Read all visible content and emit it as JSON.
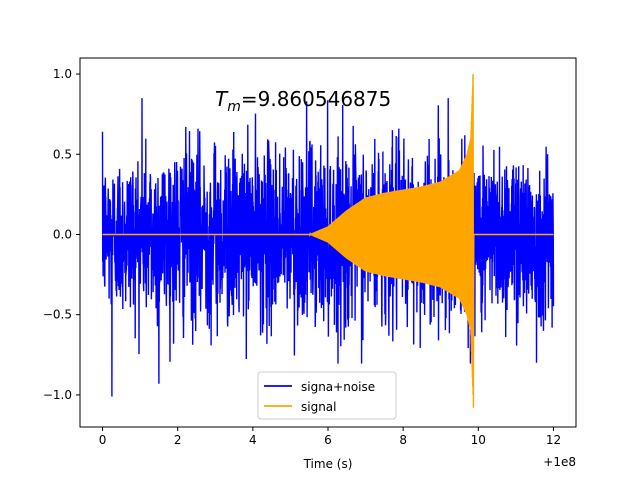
{
  "chart_data": {
    "type": "line",
    "title": "",
    "annotation_prefix": "T",
    "annotation_subscript": "m",
    "annotation_value": "=9.860546875",
    "xlabel": "Time (s)",
    "ylabel": "",
    "x_offset_label": "+1e8",
    "xlim": [
      -0.6,
      12.6
    ],
    "ylim": [
      -1.2,
      1.1
    ],
    "x_ticks": [
      0,
      2,
      4,
      6,
      8,
      10,
      12
    ],
    "x_tick_labels": [
      "0",
      "2",
      "4",
      "6",
      "8",
      "10",
      "12"
    ],
    "y_ticks": [
      -1.0,
      -0.5,
      0.0,
      0.5,
      1.0
    ],
    "y_tick_labels": [
      "−1.0",
      "−0.5",
      "0.0",
      "0.5",
      "1.0"
    ],
    "legend_position": "lower-center",
    "grid": false,
    "series": [
      {
        "name": "signa+noise",
        "color": "#0000ff",
        "x_range": [
          0,
          12
        ],
        "noise_envelope": {
          "x": [
            0,
            2,
            4,
            6,
            8,
            10,
            12
          ],
          "upper": [
            0.6,
            0.75,
            0.7,
            0.75,
            0.7,
            0.7,
            0.65
          ],
          "lower": [
            -0.6,
            -0.7,
            -0.7,
            -0.7,
            -0.7,
            -0.7,
            -0.65
          ]
        },
        "extreme_peaks": [
          {
            "x": 0.25,
            "y": 1.0
          },
          {
            "x": 0.25,
            "y": -1.01
          },
          {
            "x": 1.5,
            "y": -0.93
          },
          {
            "x": 1.05,
            "y": 0.85
          },
          {
            "x": 9.2,
            "y": 0.85
          },
          {
            "x": 11.55,
            "y": -0.8
          }
        ]
      },
      {
        "name": "signal",
        "color": "#ffa500",
        "x_range": [
          0,
          12
        ],
        "chirp_onset": 5.5,
        "merger_time": 9.860546875,
        "envelope": {
          "x": [
            5.5,
            6,
            6.5,
            7,
            7.5,
            8,
            8.5,
            9,
            9.5,
            9.7,
            9.8,
            9.86
          ],
          "amplitude": [
            0.0,
            0.05,
            0.15,
            0.23,
            0.26,
            0.28,
            0.3,
            0.33,
            0.4,
            0.5,
            0.6,
            1.0
          ]
        },
        "min_value": -1.08
      }
    ]
  }
}
